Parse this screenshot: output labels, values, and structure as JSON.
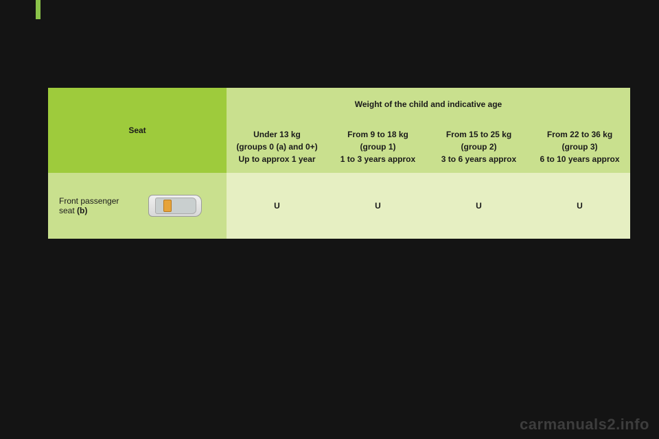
{
  "table": {
    "seat_header": "Seat",
    "weight_header": "Weight of the child and indicative age",
    "columns": [
      {
        "title": "Under 13 kg",
        "line2_a": "(groups 0 ",
        "line2_b": "(a)",
        "line2_c": " and 0+)",
        "line3": "Up to approx 1 year"
      },
      {
        "title": "From 9 to 18 kg",
        "line2": "(group 1)",
        "line3": "1 to 3 years approx"
      },
      {
        "title": "From 15 to 25 kg",
        "line2": "(group 2)",
        "line3": "3 to 6 years approx"
      },
      {
        "title": "From 22 to 36 kg",
        "line2": "(group 3)",
        "line3": "6 to 10 years approx"
      }
    ],
    "row": {
      "label_a": "Front passenger",
      "label_b": "seat ",
      "label_c": "(b)",
      "values": [
        "U",
        "U",
        "U",
        "U"
      ]
    }
  },
  "watermark": "carmanuals2.info",
  "colors": {
    "page_bg": "#141414",
    "accent": "#8bc34a",
    "header_dark": "#9ecb3c",
    "header_light": "#c9e08e",
    "cell_pale": "#e6efc2"
  }
}
